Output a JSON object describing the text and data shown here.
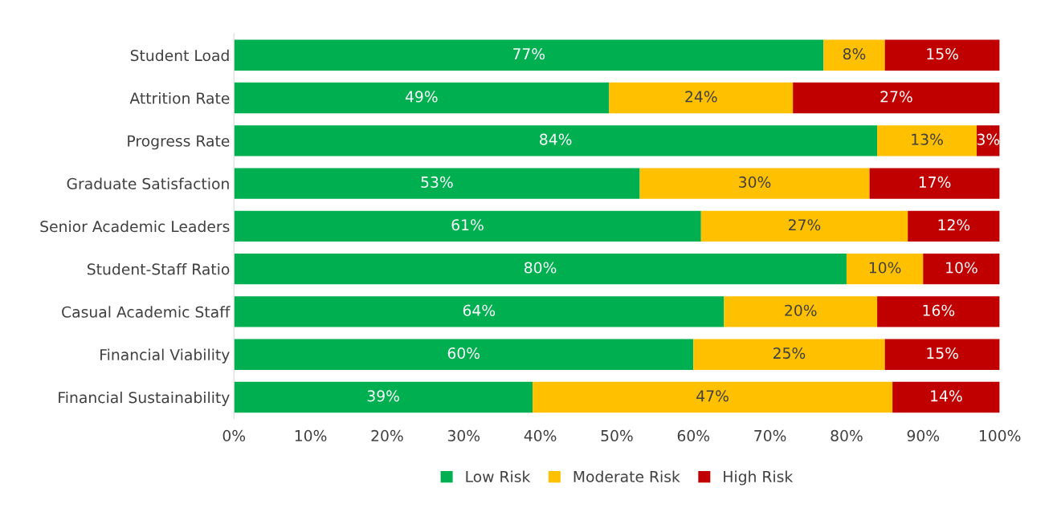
{
  "chart_data": {
    "type": "bar",
    "orientation": "horizontal",
    "stacked": true,
    "categories": [
      "Student Load",
      "Attrition Rate",
      "Progress Rate",
      "Graduate Satisfaction",
      "Senior Academic Leaders",
      "Student-Staff Ratio",
      "Casual Academic Staff",
      "Financial Viability",
      "Financial Sustainability"
    ],
    "series": [
      {
        "name": "Low Risk",
        "color": "#00b050",
        "values": [
          77,
          49,
          84,
          53,
          61,
          80,
          64,
          60,
          39
        ],
        "value_labels": [
          "77%",
          "49%",
          "84%",
          "53%",
          "61%",
          "80%",
          "64%",
          "60%",
          "39%"
        ]
      },
      {
        "name": "Moderate Risk",
        "color": "#ffc000",
        "values": [
          8,
          24,
          13,
          30,
          27,
          10,
          20,
          25,
          47
        ],
        "value_labels": [
          "8%",
          "24%",
          "13%",
          "30%",
          "27%",
          "10%",
          "20%",
          "25%",
          "47%"
        ]
      },
      {
        "name": "High Risk",
        "color": "#c00000",
        "values": [
          15,
          27,
          3,
          17,
          12,
          10,
          16,
          15,
          14
        ],
        "value_labels": [
          "15%",
          "27%",
          "3%",
          "17%",
          "12%",
          "10%",
          "16%",
          "15%",
          "14%"
        ]
      }
    ],
    "xlim": [
      0,
      100
    ],
    "xticks": [
      {
        "value": 0,
        "label": "0%"
      },
      {
        "value": 10,
        "label": "10%"
      },
      {
        "value": 20,
        "label": "20%"
      },
      {
        "value": 30,
        "label": "30%"
      },
      {
        "value": 40,
        "label": "40%"
      },
      {
        "value": 50,
        "label": "50%"
      },
      {
        "value": 60,
        "label": "60%"
      },
      {
        "value": 70,
        "label": "70%"
      },
      {
        "value": 80,
        "label": "80%"
      },
      {
        "value": 90,
        "label": "90%"
      },
      {
        "value": 100,
        "label": "100%"
      }
    ],
    "grid": false,
    "legend": "bottom"
  }
}
